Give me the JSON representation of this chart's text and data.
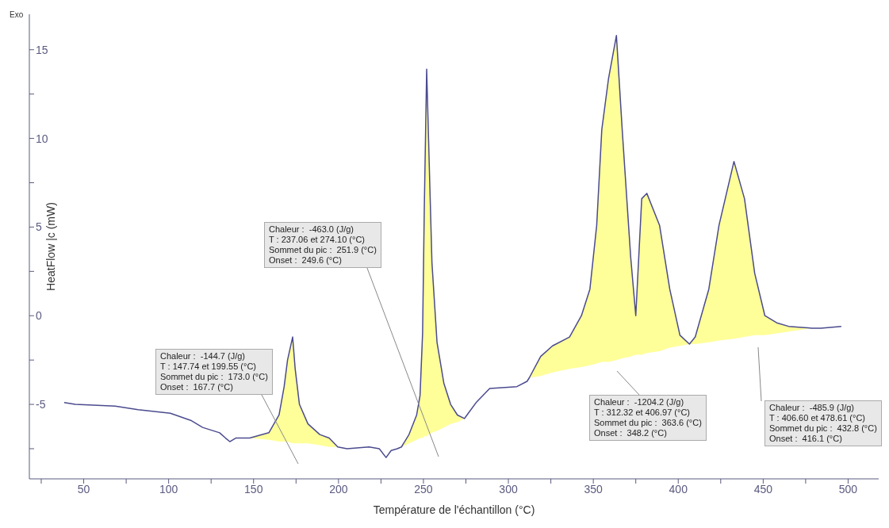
{
  "chart_data": {
    "type": "line",
    "xlabel": "Température de l'échantillon (°C)",
    "ylabel": "HeatFlow |c (mW)",
    "xlim": [
      18,
      518
    ],
    "ylim": [
      -9.2,
      17
    ],
    "xticks": [
      {
        "value": 25,
        "label": null
      },
      50,
      {
        "value": 75,
        "label": null
      },
      100,
      {
        "value": 125,
        "label": null
      },
      150,
      {
        "value": 175,
        "label": null
      },
      200,
      {
        "value": 225,
        "label": null
      },
      250,
      {
        "value": 275,
        "label": null
      },
      300,
      {
        "value": 325,
        "label": null
      },
      350,
      {
        "value": 375,
        "label": null
      },
      400,
      {
        "value": 425,
        "label": null
      },
      450,
      {
        "value": 475,
        "label": null
      },
      500
    ],
    "yticks": [
      {
        "value": -7.5,
        "label": null
      },
      -5,
      {
        "value": -2.5,
        "label": null
      },
      0,
      {
        "value": 2.5,
        "label": null
      },
      5,
      {
        "value": 7.5,
        "label": null
      },
      10,
      {
        "value": 12.5,
        "label": null
      },
      15
    ],
    "series": [
      {
        "type": "line",
        "color": "#4b4b8f",
        "x": [
          38.5,
          45,
          68.5,
          82,
          101,
          113,
          120,
          130,
          133.5,
          136,
          139.5,
          147.74,
          159,
          165,
          168,
          170,
          173,
          174.5,
          177,
          182,
          189,
          194.5,
          199.55,
          205,
          218,
          224,
          228,
          231,
          234.6,
          237.06,
          241.5,
          246,
          248,
          249.5,
          250.5,
          251.9,
          253,
          255,
          258,
          262,
          266,
          270,
          274.1,
          281,
          289,
          305,
          311,
          312.32,
          319,
          326,
          336,
          343,
          348,
          352,
          355,
          359,
          363.6,
          367,
          372,
          375,
          378.5,
          381.5,
          389,
          395,
          401,
          406.6,
          410,
          418,
          424,
          432.8,
          439,
          445,
          451,
          458,
          465,
          478.61,
          484,
          496
        ],
        "values": [
          -4.9,
          -5.0,
          -5.1,
          -5.3,
          -5.5,
          -5.9,
          -6.3,
          -6.6,
          -6.9,
          -7.1,
          -6.9,
          -6.9,
          -6.6,
          -5.6,
          -4.0,
          -2.5,
          -1.2,
          -3.0,
          -5.0,
          -6.1,
          -6.7,
          -6.9,
          -7.4,
          -7.5,
          -7.4,
          -7.5,
          -8.0,
          -7.6,
          -7.5,
          -7.4,
          -6.7,
          -5.6,
          -4.5,
          -1.0,
          6.0,
          13.9,
          10.0,
          3.0,
          -1.5,
          -3.8,
          -5.0,
          -5.6,
          -5.8,
          -4.9,
          -4.1,
          -4.0,
          -3.7,
          -3.5,
          -2.3,
          -1.7,
          -1.2,
          0,
          1.5,
          5.1,
          10.5,
          13.4,
          15.8,
          10.5,
          3.3,
          0.0,
          6.6,
          6.9,
          5.1,
          1.5,
          -1.1,
          -1.6,
          -1.2,
          1.5,
          5.1,
          8.7,
          6.6,
          2.4,
          0,
          -0.4,
          -0.6,
          -0.7,
          -0.7,
          -0.6
        ],
        "lower": [
          null,
          null,
          null,
          null,
          null,
          null,
          null,
          null,
          null,
          null,
          null,
          -6.9,
          -7.0,
          -7.1,
          -7.1,
          -7.1,
          -7.2,
          -7.2,
          -7.2,
          -7.2,
          -7.3,
          -7.4,
          -7.4,
          null,
          null,
          null,
          null,
          null,
          null,
          -7.4,
          -7.2,
          -7.0,
          -6.9,
          -6.9,
          -6.8,
          -6.8,
          -6.7,
          -6.6,
          -6.5,
          -6.3,
          -6.1,
          -6.0,
          -5.8,
          null,
          null,
          null,
          null,
          -3.5,
          -3.4,
          -3.2,
          -3.0,
          -2.9,
          -2.8,
          -2.7,
          -2.6,
          -2.6,
          -2.5,
          -2.4,
          -2.3,
          -2.2,
          -2.2,
          -2.1,
          -2.0,
          -1.8,
          -1.7,
          -1.6,
          -1.6,
          -1.5,
          -1.4,
          -1.3,
          -1.2,
          -1.1,
          -1.1,
          -1.0,
          -0.9,
          -0.7,
          null,
          null
        ],
        "upper": [
          null,
          null,
          null,
          null,
          null,
          null,
          null,
          null,
          null,
          null,
          null,
          -6.9,
          -6.6,
          -5.6,
          -4.0,
          -2.5,
          -1.2,
          -3.0,
          -5.0,
          -6.1,
          -6.7,
          -6.9,
          -7.4,
          null,
          null,
          null,
          null,
          null,
          null,
          -7.4,
          -6.7,
          -5.6,
          -4.5,
          -1.0,
          6.0,
          13.9,
          10.0,
          3.0,
          -1.5,
          -3.8,
          -5.0,
          -5.6,
          -5.8,
          null,
          null,
          null,
          null,
          -3.5,
          -2.3,
          -1.7,
          -1.2,
          0,
          1.5,
          5.1,
          10.5,
          13.4,
          15.8,
          10.5,
          3.3,
          0.0,
          6.6,
          6.9,
          5.1,
          1.5,
          -1.1,
          -1.6,
          -1.2,
          1.5,
          5.1,
          8.7,
          6.6,
          2.4,
          0,
          -0.4,
          -0.6,
          -0.7,
          null,
          null
        ]
      }
    ],
    "annotations": [
      "Exo",
      "Chaleur :  -144.7 (J/g)\nT : 147.74 et 199.55 (°C)\nSommet du pic :  173.0 (°C)\nOnset :  167.7 (°C)",
      "Chaleur :  -463.0 (J/g)\nT : 237.06 et 274.10 (°C)\nSommet du pic :  251.9 (°C)\nOnset :  249.6 (°C)",
      "Chaleur :  -1204.2 (J/g)\nT : 312.32 et 406.97 (°C)\nSommet du pic :  363.6 (°C)\nOnset :  348.2 (°C)",
      "Chaleur :  -485.9 (J/g)\nT : 406.60 et 478.61 (°C)\nSommet du pic :  432.8 (°C)\nOnset :  416.1 (°C)"
    ]
  }
}
